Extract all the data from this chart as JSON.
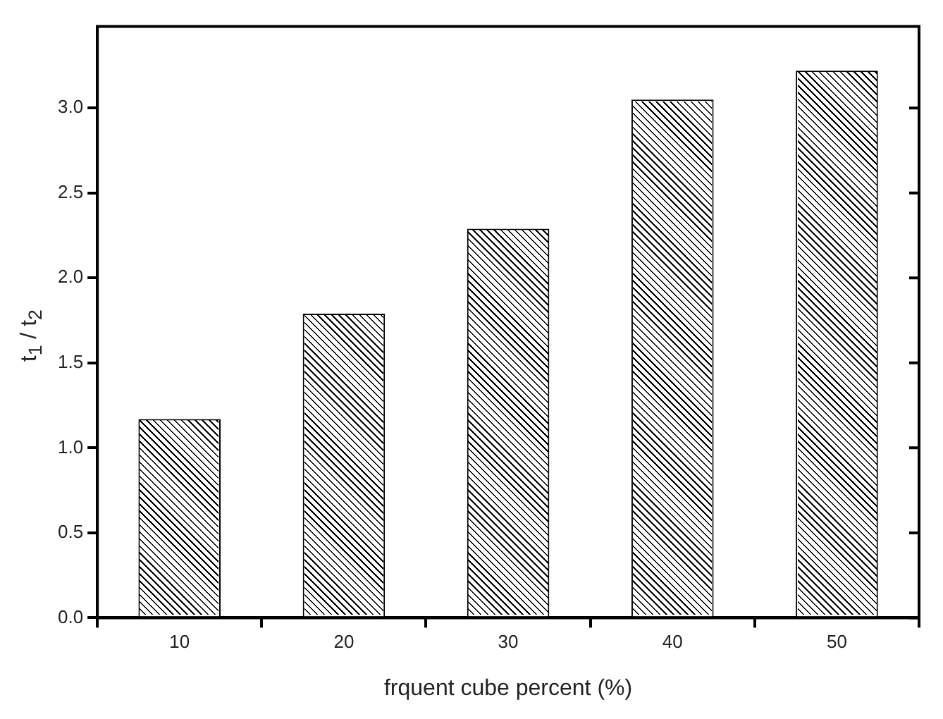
{
  "chart_data": {
    "type": "bar",
    "xlabel": "frquent cube percent (%)",
    "ylabel": "t$_{1}$ / t$_{2}$",
    "categories": [
      "10",
      "20",
      "30",
      "40",
      "50"
    ],
    "values": [
      1.17,
      1.79,
      2.29,
      3.05,
      3.22
    ],
    "color": "#ffffff",
    "ylim": [
      0,
      3.48
    ],
    "yticks": [
      {
        "value": 0,
        "label": "0.0"
      },
      {
        "value": 0.5,
        "label": "0.5"
      },
      {
        "value": 1,
        "label": "1.0"
      },
      {
        "value": 1.5,
        "label": "1.5"
      },
      {
        "value": 2,
        "label": "2.0"
      },
      {
        "value": 2.5,
        "label": "2.5"
      },
      {
        "value": 3,
        "label": "3.0"
      }
    ],
    "grid": false,
    "legend": false
  }
}
